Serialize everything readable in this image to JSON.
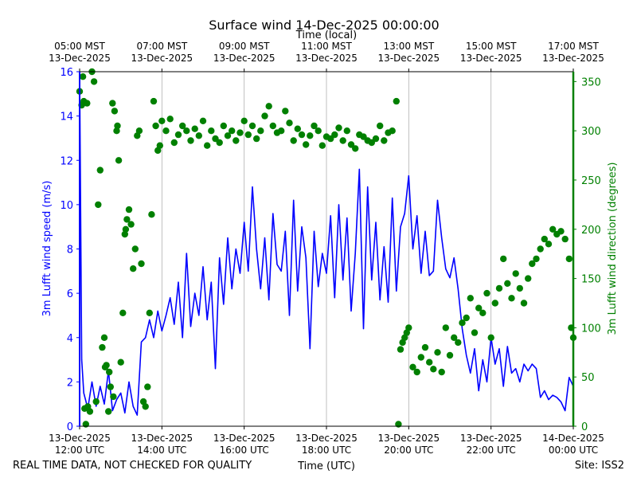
{
  "chart_data": {
    "type": "line",
    "title": "Surface wind 14-Dec-2025 00:00:00",
    "top_axis_title": "Time (local)",
    "xlabel": "Time (UTC)",
    "ylabel_left": "3m Lufft wind speed (m/s)",
    "ylabel_right": "3m Lufft wind direction (degrees)",
    "footer_left": "REAL TIME DATA, NOT CHECKED FOR QUALITY",
    "footer_right": "Site: ISS2",
    "x_range_hours": [
      0,
      12
    ],
    "y_left_range": [
      0,
      16
    ],
    "y_right_range": [
      0,
      360
    ],
    "y_left_ticks": [
      "0",
      "2",
      "4",
      "6",
      "8",
      "10",
      "12",
      "14",
      "16"
    ],
    "y_right_ticks": [
      "0",
      "50",
      "100",
      "150",
      "200",
      "250",
      "300",
      "350"
    ],
    "x_ticks_utc": [
      {
        "hour": 0,
        "line1": "13-Dec-2025",
        "line2": "12:00 UTC"
      },
      {
        "hour": 2,
        "line1": "13-Dec-2025",
        "line2": "14:00 UTC"
      },
      {
        "hour": 4,
        "line1": "13-Dec-2025",
        "line2": "16:00 UTC"
      },
      {
        "hour": 6,
        "line1": "13-Dec-2025",
        "line2": "18:00 UTC"
      },
      {
        "hour": 8,
        "line1": "13-Dec-2025",
        "line2": "20:00 UTC"
      },
      {
        "hour": 10,
        "line1": "13-Dec-2025",
        "line2": "22:00 UTC"
      },
      {
        "hour": 12,
        "line1": "14-Dec-2025",
        "line2": "00:00 UTC"
      }
    ],
    "x_ticks_local": [
      {
        "hour": 0,
        "line1": "05:00 MST",
        "line2": "13-Dec-2025"
      },
      {
        "hour": 2,
        "line1": "07:00 MST",
        "line2": "13-Dec-2025"
      },
      {
        "hour": 4,
        "line1": "09:00 MST",
        "line2": "13-Dec-2025"
      },
      {
        "hour": 6,
        "line1": "11:00 MST",
        "line2": "13-Dec-2025"
      },
      {
        "hour": 8,
        "line1": "13:00 MST",
        "line2": "13-Dec-2025"
      },
      {
        "hour": 10,
        "line1": "15:00 MST",
        "line2": "13-Dec-2025"
      },
      {
        "hour": 12,
        "line1": "17:00 MST",
        "line2": "13-Dec-2025"
      }
    ],
    "series": [
      {
        "name": "3m Lufft wind speed",
        "axis": "left",
        "color": "#0000ff",
        "style": "line",
        "hours": [
          0,
          0.05,
          0.1,
          0.2,
          0.3,
          0.4,
          0.5,
          0.6,
          0.7,
          0.8,
          0.9,
          1.0,
          1.1,
          1.2,
          1.3,
          1.4,
          1.5,
          1.6,
          1.7,
          1.8,
          1.9,
          2.0,
          2.1,
          2.2,
          2.3,
          2.4,
          2.5,
          2.6,
          2.7,
          2.8,
          2.9,
          3.0,
          3.1,
          3.2,
          3.3,
          3.4,
          3.5,
          3.6,
          3.7,
          3.8,
          3.9,
          4.0,
          4.1,
          4.2,
          4.3,
          4.4,
          4.5,
          4.6,
          4.7,
          4.8,
          4.9,
          5.0,
          5.1,
          5.2,
          5.3,
          5.4,
          5.5,
          5.6,
          5.7,
          5.8,
          5.9,
          6.0,
          6.1,
          6.2,
          6.3,
          6.4,
          6.5,
          6.6,
          6.7,
          6.8,
          6.9,
          7.0,
          7.1,
          7.2,
          7.3,
          7.4,
          7.5,
          7.6,
          7.7,
          7.8,
          7.9,
          8.0,
          8.1,
          8.2,
          8.3,
          8.4,
          8.5,
          8.6,
          8.7,
          8.8,
          8.9,
          9.0,
          9.1,
          9.2,
          9.3,
          9.4,
          9.5,
          9.6,
          9.7,
          9.8,
          9.9,
          10.0,
          10.1,
          10.2,
          10.3,
          10.4,
          10.5,
          10.6,
          10.7,
          10.8,
          10.9,
          11.0,
          11.1,
          11.2,
          11.3,
          11.4,
          11.5,
          11.6,
          11.7,
          11.8,
          11.9,
          12.0
        ],
        "values": [
          16.0,
          3.0,
          1.5,
          0.8,
          2.0,
          0.9,
          1.8,
          1.0,
          2.5,
          0.7,
          1.2,
          1.5,
          0.6,
          2.0,
          0.9,
          0.5,
          3.8,
          4.0,
          4.8,
          4.0,
          5.2,
          4.3,
          5.0,
          5.8,
          4.6,
          6.5,
          4.0,
          7.8,
          4.5,
          6.0,
          5.0,
          7.2,
          4.8,
          6.5,
          2.6,
          7.6,
          5.5,
          8.5,
          6.2,
          8.0,
          6.9,
          9.2,
          7.0,
          10.8,
          8.0,
          6.2,
          8.5,
          5.7,
          9.6,
          7.3,
          7.0,
          8.8,
          5.0,
          10.2,
          6.1,
          9.0,
          7.6,
          3.5,
          8.8,
          6.3,
          7.8,
          6.9,
          9.5,
          5.8,
          10.0,
          6.6,
          9.4,
          5.2,
          7.8,
          11.6,
          4.4,
          10.8,
          6.6,
          9.2,
          5.7,
          8.1,
          5.6,
          10.3,
          6.1,
          9.0,
          9.6,
          11.3,
          8.0,
          9.5,
          6.9,
          8.8,
          6.8,
          7.0,
          10.2,
          8.5,
          7.1,
          6.7,
          7.6,
          6.2,
          4.4,
          3.2,
          2.4,
          3.5,
          1.6,
          3.0,
          2.0,
          4.0,
          2.8,
          3.5,
          1.8,
          3.6,
          2.4,
          2.6,
          2.0,
          2.8,
          2.5,
          2.8,
          2.6,
          1.3,
          1.6,
          1.2,
          1.4,
          1.3,
          1.1,
          0.7,
          2.2,
          1.8
        ]
      },
      {
        "name": "3m Lufft wind direction",
        "axis": "right",
        "color": "#008000",
        "style": "markers",
        "hours": [
          0.0,
          0.05,
          0.08,
          0.1,
          0.12,
          0.15,
          0.18,
          0.2,
          0.25,
          0.3,
          0.35,
          0.4,
          0.45,
          0.5,
          0.55,
          0.6,
          0.62,
          0.65,
          0.7,
          0.72,
          0.75,
          0.8,
          0.82,
          0.85,
          0.9,
          0.92,
          0.95,
          1.0,
          1.05,
          1.1,
          1.12,
          1.15,
          1.2,
          1.25,
          1.3,
          1.35,
          1.4,
          1.45,
          1.5,
          1.55,
          1.6,
          1.65,
          1.7,
          1.75,
          1.8,
          1.85,
          1.9,
          1.95,
          2.0,
          2.1,
          2.2,
          2.3,
          2.4,
          2.5,
          2.6,
          2.7,
          2.8,
          2.9,
          3.0,
          3.1,
          3.2,
          3.3,
          3.4,
          3.5,
          3.6,
          3.7,
          3.8,
          3.9,
          4.0,
          4.1,
          4.2,
          4.3,
          4.4,
          4.5,
          4.6,
          4.7,
          4.8,
          4.9,
          5.0,
          5.1,
          5.2,
          5.3,
          5.4,
          5.5,
          5.6,
          5.7,
          5.8,
          5.9,
          6.0,
          6.1,
          6.2,
          6.3,
          6.4,
          6.5,
          6.6,
          6.7,
          6.8,
          6.9,
          7.0,
          7.1,
          7.2,
          7.3,
          7.4,
          7.5,
          7.6,
          7.7,
          7.75,
          7.8,
          7.85,
          7.9,
          7.95,
          8.0,
          8.1,
          8.2,
          8.3,
          8.4,
          8.5,
          8.6,
          8.7,
          8.8,
          8.9,
          9.0,
          9.1,
          9.2,
          9.3,
          9.4,
          9.5,
          9.6,
          9.7,
          9.8,
          9.9,
          10.0,
          10.1,
          10.2,
          10.3,
          10.4,
          10.5,
          10.6,
          10.7,
          10.8,
          10.9,
          11.0,
          11.1,
          11.2,
          11.3,
          11.4,
          11.5,
          11.6,
          11.7,
          11.8,
          11.9,
          11.95,
          12.0
        ],
        "values": [
          340,
          326,
          355,
          330,
          18,
          2,
          328,
          20,
          15,
          360,
          350,
          25,
          225,
          260,
          80,
          90,
          60,
          62,
          15,
          55,
          40,
          328,
          30,
          320,
          300,
          305,
          270,
          65,
          115,
          195,
          200,
          210,
          220,
          205,
          160,
          180,
          295,
          300,
          165,
          25,
          20,
          40,
          115,
          215,
          330,
          305,
          280,
          285,
          310,
          300,
          312,
          288,
          296,
          305,
          300,
          290,
          302,
          295,
          310,
          285,
          300,
          292,
          288,
          305,
          295,
          300,
          290,
          298,
          310,
          296,
          305,
          292,
          300,
          315,
          325,
          305,
          298,
          300,
          320,
          308,
          290,
          302,
          296,
          286,
          295,
          305,
          300,
          285,
          294,
          292,
          296,
          303,
          290,
          300,
          286,
          282,
          296,
          294,
          290,
          288,
          292,
          305,
          290,
          298,
          300,
          330,
          2,
          78,
          85,
          90,
          95,
          100,
          60,
          55,
          70,
          80,
          65,
          58,
          75,
          55,
          100,
          72,
          90,
          85,
          105,
          110,
          130,
          95,
          120,
          115,
          135,
          90,
          125,
          140,
          170,
          145,
          130,
          155,
          140,
          125,
          150,
          165,
          170,
          180,
          190,
          185,
          200,
          195,
          198,
          190,
          170,
          100,
          90
        ]
      }
    ]
  }
}
